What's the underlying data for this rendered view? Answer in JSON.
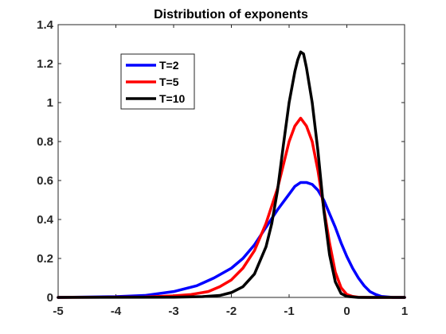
{
  "chart_data": {
    "type": "line",
    "title": "Distribution of exponents",
    "xlabel": "",
    "ylabel": "",
    "xlim": [
      -5,
      1
    ],
    "ylim": [
      0,
      1.4
    ],
    "xticks": [
      -5,
      -4,
      -3,
      -2,
      -1,
      0,
      1
    ],
    "yticks": [
      0,
      0.2,
      0.4,
      0.6,
      0.8,
      1,
      1.2,
      1.4
    ],
    "xtick_labels": [
      "-5",
      "-4",
      "-3",
      "-2",
      "-1",
      "0",
      "1"
    ],
    "ytick_labels": [
      "0",
      "0.2",
      "0.4",
      "0.6",
      "0.8",
      "1",
      "1.2",
      "1.4"
    ],
    "grid": false,
    "legend_position": "top-left",
    "series": [
      {
        "name": "T=2",
        "color": "#0000ff",
        "x": [
          -5.0,
          -4.0,
          -3.5,
          -3.0,
          -2.6,
          -2.3,
          -2.0,
          -1.8,
          -1.6,
          -1.4,
          -1.2,
          -1.0,
          -0.9,
          -0.8,
          -0.7,
          -0.6,
          -0.5,
          -0.4,
          -0.3,
          -0.2,
          -0.1,
          0.0,
          0.1,
          0.2,
          0.3,
          0.4,
          0.5,
          0.6,
          0.8,
          1.0
        ],
        "y": [
          0.0,
          0.004,
          0.01,
          0.03,
          0.06,
          0.1,
          0.15,
          0.2,
          0.27,
          0.36,
          0.45,
          0.53,
          0.57,
          0.59,
          0.59,
          0.58,
          0.55,
          0.5,
          0.43,
          0.36,
          0.28,
          0.21,
          0.15,
          0.1,
          0.06,
          0.03,
          0.015,
          0.005,
          0.0,
          0.0
        ]
      },
      {
        "name": "T=5",
        "color": "#ff0000",
        "x": [
          -5.0,
          -3.5,
          -3.0,
          -2.7,
          -2.4,
          -2.2,
          -2.0,
          -1.8,
          -1.6,
          -1.4,
          -1.2,
          -1.1,
          -1.0,
          -0.9,
          -0.8,
          -0.7,
          -0.6,
          -0.5,
          -0.4,
          -0.3,
          -0.2,
          -0.1,
          0.0,
          0.1,
          0.2,
          0.4,
          1.0
        ],
        "y": [
          0.0,
          0.002,
          0.008,
          0.015,
          0.03,
          0.055,
          0.09,
          0.15,
          0.24,
          0.38,
          0.56,
          0.68,
          0.8,
          0.88,
          0.92,
          0.88,
          0.8,
          0.65,
          0.46,
          0.28,
          0.13,
          0.05,
          0.015,
          0.005,
          0.001,
          0.0,
          0.0
        ]
      },
      {
        "name": "T=10",
        "color": "#000000",
        "x": [
          -5.0,
          -3.0,
          -2.5,
          -2.2,
          -2.0,
          -1.8,
          -1.6,
          -1.4,
          -1.3,
          -1.2,
          -1.1,
          -1.0,
          -0.9,
          -0.85,
          -0.8,
          -0.75,
          -0.7,
          -0.6,
          -0.5,
          -0.4,
          -0.3,
          -0.2,
          -0.1,
          0.0,
          0.2,
          1.0
        ],
        "y": [
          0.0,
          0.001,
          0.004,
          0.01,
          0.025,
          0.055,
          0.12,
          0.26,
          0.38,
          0.55,
          0.78,
          1.0,
          1.16,
          1.22,
          1.26,
          1.25,
          1.18,
          1.0,
          0.75,
          0.45,
          0.22,
          0.08,
          0.02,
          0.005,
          0.0,
          0.0
        ]
      }
    ]
  }
}
